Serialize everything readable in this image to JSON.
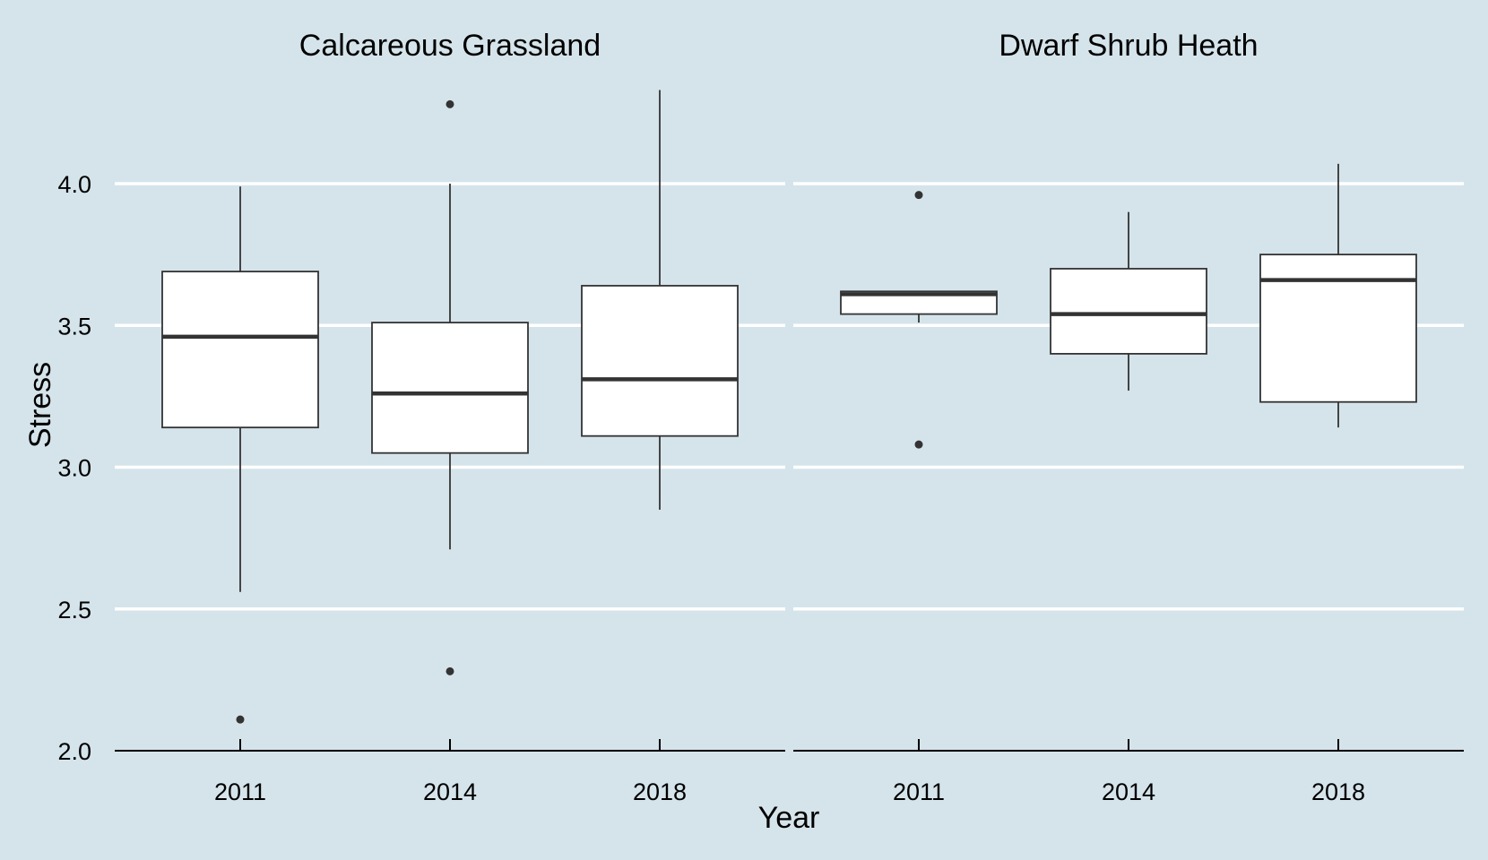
{
  "chart_data": {
    "type": "boxplot",
    "xlabel": "Year",
    "ylabel": "Stress",
    "ylim": [
      2.0,
      4.4
    ],
    "yticks": [
      "2.0",
      "2.5",
      "3.0",
      "3.5",
      "4.0"
    ],
    "categories": [
      "2011",
      "2014",
      "2018"
    ],
    "grid": "horizontal major, white",
    "background": "#d5e4eb",
    "panels": [
      {
        "title": "Calcareous Grassland",
        "boxes": [
          {
            "year": "2011",
            "whisker_low": 2.56,
            "q1": 3.14,
            "median": 3.46,
            "q3": 3.69,
            "whisker_high": 3.99,
            "outliers": [
              2.11
            ]
          },
          {
            "year": "2014",
            "whisker_low": 2.71,
            "q1": 3.05,
            "median": 3.26,
            "q3": 3.51,
            "whisker_high": 4.0,
            "outliers": [
              2.28,
              4.28
            ]
          },
          {
            "year": "2018",
            "whisker_low": 2.85,
            "q1": 3.11,
            "median": 3.31,
            "q3": 3.64,
            "whisker_high": 4.33,
            "outliers": []
          }
        ]
      },
      {
        "title": "Dwarf Shrub Heath",
        "boxes": [
          {
            "year": "2011",
            "whisker_low": 3.51,
            "q1": 3.54,
            "median": 3.61,
            "q3": 3.62,
            "whisker_high": 3.62,
            "outliers": [
              3.08,
              3.96
            ]
          },
          {
            "year": "2014",
            "whisker_low": 3.27,
            "q1": 3.4,
            "median": 3.54,
            "q3": 3.7,
            "whisker_high": 3.9,
            "outliers": []
          },
          {
            "year": "2018",
            "whisker_low": 3.14,
            "q1": 3.23,
            "median": 3.66,
            "q3": 3.75,
            "whisker_high": 4.07,
            "outliers": []
          }
        ]
      }
    ]
  }
}
